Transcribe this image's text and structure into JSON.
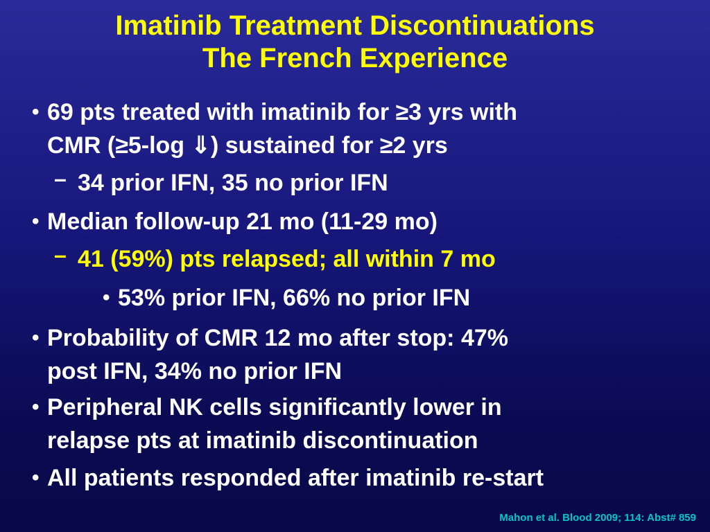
{
  "title": {
    "line1": "Imatinib Treatment Discontinuations",
    "line2": "The French Experience"
  },
  "bullets": [
    {
      "marker": "•",
      "lines": [
        "69 pts treated with imatinib for ≥3 yrs with",
        "CMR (≥5-log ⇓) sustained for ≥2 yrs"
      ]
    },
    {
      "marker": "–",
      "lines": [
        "34 prior IFN, 35 no prior IFN"
      ]
    },
    {
      "marker": "•",
      "lines": [
        "Median follow-up 21 mo (11-29 mo)"
      ]
    },
    {
      "marker": "–",
      "lines": [
        "41 (59%) pts relapsed; all within 7 mo"
      ]
    },
    {
      "marker": "•",
      "lines": [
        "53% prior IFN, 66% no prior IFN"
      ]
    },
    {
      "marker": "•",
      "lines": [
        "Probability of CMR 12 mo after stop: 47%",
        "post IFN, 34% no prior IFN"
      ]
    },
    {
      "marker": "•",
      "lines": [
        "Peripheral NK cells significantly lower in",
        "relapse pts at imatinib discontinuation"
      ]
    },
    {
      "marker": "•",
      "lines": [
        "All patients responded after imatinib re-start"
      ]
    }
  ],
  "citation": "Mahon et al. Blood 2009; 114: Abst# 859",
  "colors": {
    "title": "#ffff00",
    "body_text": "#ffffff",
    "highlight_text": "#ffff00",
    "citation": "#00c8c8",
    "background": "#14147a"
  }
}
